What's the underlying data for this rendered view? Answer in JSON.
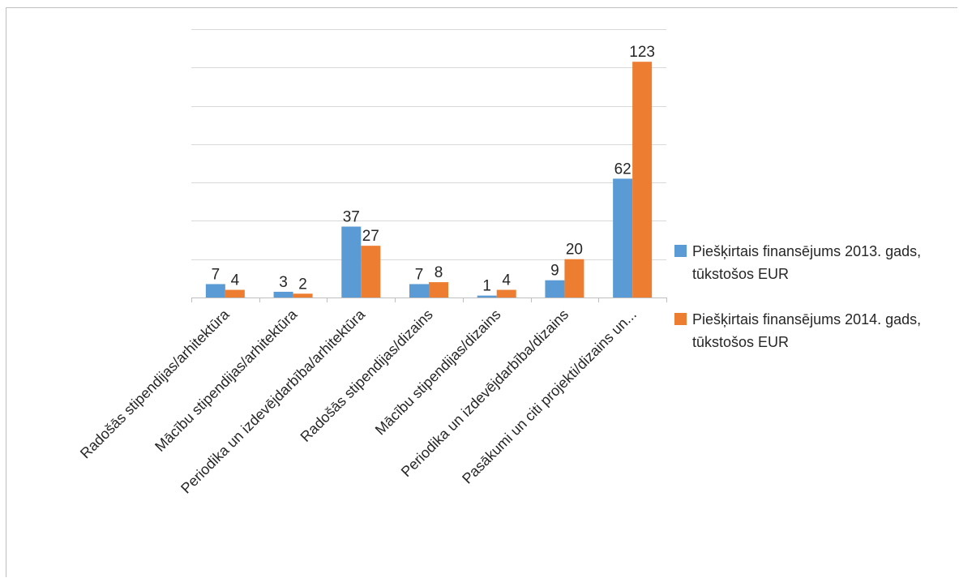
{
  "chart_data": {
    "type": "bar",
    "title": "",
    "xlabel": "",
    "ylabel": "",
    "ylim": [
      0,
      140
    ],
    "grid": true,
    "legend_position": "right",
    "categories": [
      "Radošās stipendijas/arhitektūra",
      "Mācību stipendijas/arhitektūra",
      "Periodika un izdevējdarbība/arhitektūra",
      "Radošās stipendijas/dizains",
      "Mācību stipendijas/dizains",
      "Periodika un izdevējdarbība/dizains",
      "Pasākumi un citi projekti/dizains un..."
    ],
    "series": [
      {
        "name": "Piešķirtais finansējums 2013. gads, tūkstošos EUR",
        "color": "#5b9bd5",
        "values": [
          7,
          3,
          37,
          7,
          1,
          9,
          62
        ]
      },
      {
        "name": "Piešķirtais finansējums 2014. gads, tūkstošos EUR",
        "color": "#ed7d31",
        "values": [
          4,
          2,
          27,
          8,
          4,
          20,
          123
        ]
      }
    ]
  }
}
